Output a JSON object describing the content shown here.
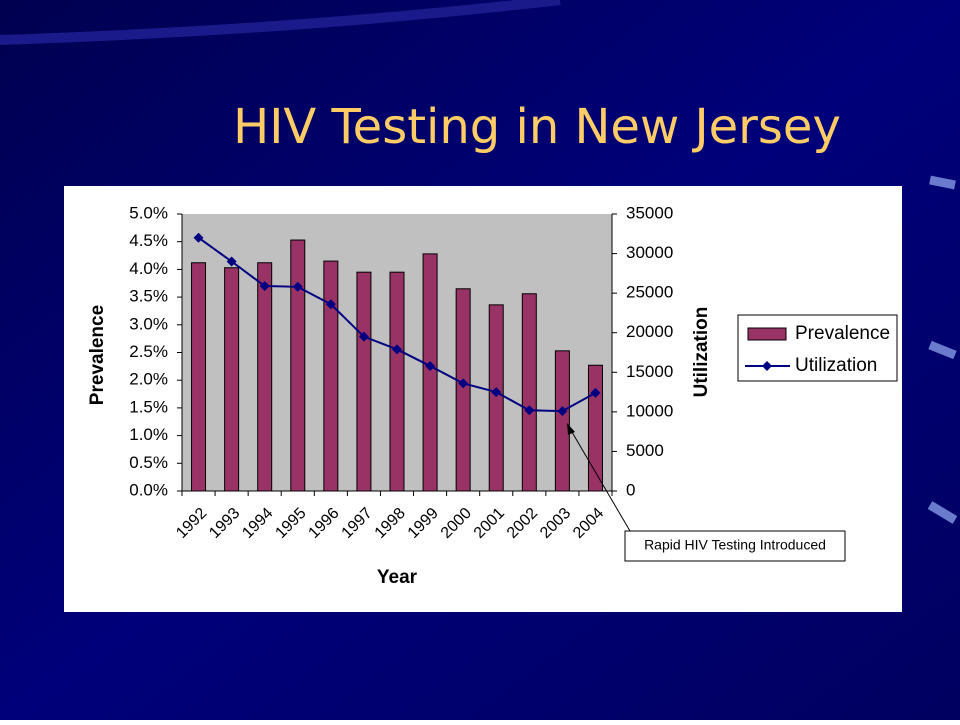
{
  "title": "HIV Testing in New Jersey",
  "chart_data": {
    "type": "bar",
    "x_label": "Year",
    "y_label": "Prevalence",
    "y2_label": "Utilization",
    "categories": [
      "1992",
      "1993",
      "1994",
      "1995",
      "1996",
      "1997",
      "1998",
      "1999",
      "2000",
      "2001",
      "2002",
      "2003",
      "2004"
    ],
    "series": [
      {
        "name": "Prevalence",
        "type": "bar",
        "color": "#993366",
        "values": [
          4.12,
          4.03,
          4.12,
          4.53,
          4.15,
          3.95,
          3.95,
          4.28,
          3.65,
          3.36,
          3.56,
          2.53,
          2.27
        ]
      },
      {
        "name": "Utilization",
        "type": "line",
        "axis": "y2",
        "color": "#000080",
        "values": [
          32000,
          29000,
          25900,
          25800,
          23600,
          19500,
          17900,
          15800,
          13600,
          12500,
          10200,
          10100,
          12400
        ]
      }
    ],
    "ylim": [
      0,
      5
    ],
    "yticks": [
      {
        "value": 0,
        "label": "0.0%"
      },
      {
        "value": 0.5,
        "label": "0.5%"
      },
      {
        "value": 1,
        "label": "1.0%"
      },
      {
        "value": 1.5,
        "label": "1.5%"
      },
      {
        "value": 2,
        "label": "2.0%"
      },
      {
        "value": 2.5,
        "label": "2.5%"
      },
      {
        "value": 3,
        "label": "3.0%"
      },
      {
        "value": 3.5,
        "label": "3.5%"
      },
      {
        "value": 4,
        "label": "4.0%"
      },
      {
        "value": 4.5,
        "label": "4.5%"
      },
      {
        "value": 5,
        "label": "5.0%"
      }
    ],
    "y2lim": [
      0,
      35000
    ],
    "y2ticks": [
      0,
      5000,
      10000,
      15000,
      20000,
      25000,
      30000,
      35000
    ],
    "annotation": "Rapid HIV Testing Introduced",
    "plot_background": "#c0c0c0"
  }
}
